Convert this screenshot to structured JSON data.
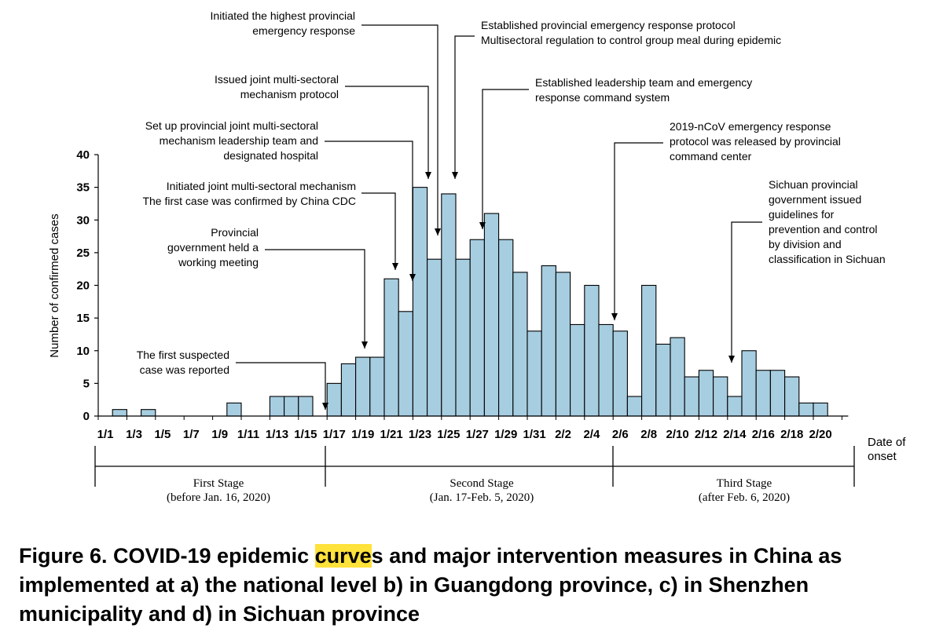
{
  "chart_data": {
    "type": "bar",
    "ylabel": "Number of confirmed cases",
    "xlabel": [
      "Date of",
      "onset"
    ],
    "ylim": [
      0,
      40
    ],
    "yticks": [
      0,
      5,
      10,
      15,
      20,
      25,
      30,
      35,
      40
    ],
    "tick_labels": [
      "1/1",
      "1/3",
      "1/5",
      "1/7",
      "1/9",
      "1/11",
      "1/13",
      "1/15",
      "1/17",
      "1/19",
      "1/21",
      "1/23",
      "1/25",
      "1/27",
      "1/29",
      "1/31",
      "2/2",
      "2/4",
      "2/6",
      "2/8",
      "2/10",
      "2/12",
      "2/14",
      "2/16",
      "2/18",
      "2/20"
    ],
    "categories": [
      "1/1",
      "1/2",
      "1/3",
      "1/4",
      "1/5",
      "1/6",
      "1/7",
      "1/8",
      "1/9",
      "1/10",
      "1/11",
      "1/12",
      "1/13",
      "1/14",
      "1/15",
      "1/16",
      "1/17",
      "1/18",
      "1/19",
      "1/20",
      "1/21",
      "1/22",
      "1/23",
      "1/24",
      "1/25",
      "1/26",
      "1/27",
      "1/28",
      "1/29",
      "1/30",
      "1/31",
      "2/1",
      "2/2",
      "2/3",
      "2/4",
      "2/5",
      "2/6",
      "2/7",
      "2/8",
      "2/9",
      "2/10",
      "2/11",
      "2/12",
      "2/13",
      "2/14",
      "2/15",
      "2/16",
      "2/17",
      "2/18",
      "2/19",
      "2/20",
      "2/21"
    ],
    "values": [
      0,
      1,
      0,
      1,
      0,
      0,
      0,
      0,
      0,
      2,
      0,
      0,
      3,
      3,
      3,
      0,
      5,
      8,
      9,
      9,
      21,
      16,
      35,
      24,
      34,
      24,
      27,
      31,
      27,
      22,
      13,
      23,
      22,
      14,
      20,
      14,
      13,
      3,
      20,
      11,
      12,
      6,
      7,
      6,
      3,
      10,
      7,
      7,
      6,
      2,
      2,
      0
    ],
    "bar_color": "#a7cde0",
    "annotations": [
      {
        "lines": [
          "The first suspected",
          "case was reported"
        ],
        "index": 15
      },
      {
        "lines": [
          "Provincial",
          "government held a",
          "working meeting"
        ],
        "index": 18
      },
      {
        "lines": [
          "Initiated joint multi-sectoral mechanism",
          "The first case was confirmed by China CDC"
        ],
        "index": 20
      },
      {
        "lines": [
          "Set up provincial joint multi-sectoral",
          "mechanism leadership team and",
          "designated hospital"
        ],
        "index": 21
      },
      {
        "lines": [
          "Issued joint multi-sectoral",
          "mechanism protocol"
        ],
        "index": 22
      },
      {
        "lines": [
          "Initiated the highest provincial",
          "emergency response"
        ],
        "index": 23
      },
      {
        "lines": [
          "Established provincial emergency response  protocol",
          "Multisectoral regulation to control group meal during epidemic"
        ],
        "index": 24
      },
      {
        "lines": [
          "Established leadership team and emergency",
          "response command system"
        ],
        "index": 26
      },
      {
        "lines": [
          "2019-nCoV  emergency response",
          "protocol  was released by provincial",
          "command center"
        ],
        "index": 35
      },
      {
        "lines": [
          "Sichuan provincial",
          "government issued",
          "guidelines for",
          "prevention and control",
          "by division and",
          "classification in Sichuan"
        ],
        "index": 43
      }
    ],
    "stages": [
      {
        "name": "First Stage",
        "period": "(before Jan. 16, 2020)"
      },
      {
        "name": "Second Stage",
        "period": "(Jan. 17-Feb. 5, 2020)"
      },
      {
        "name": "Third Stage",
        "period": "(after Feb. 6, 2020)"
      }
    ]
  },
  "caption": {
    "before": "Figure 6. COVID-19 epidemic ",
    "highlight": "curve",
    "after": "s and major intervention measures in China as implemented at a) the national level b) in Guangdong province, c) in Shenzhen municipality and d) in Sichuan province"
  }
}
